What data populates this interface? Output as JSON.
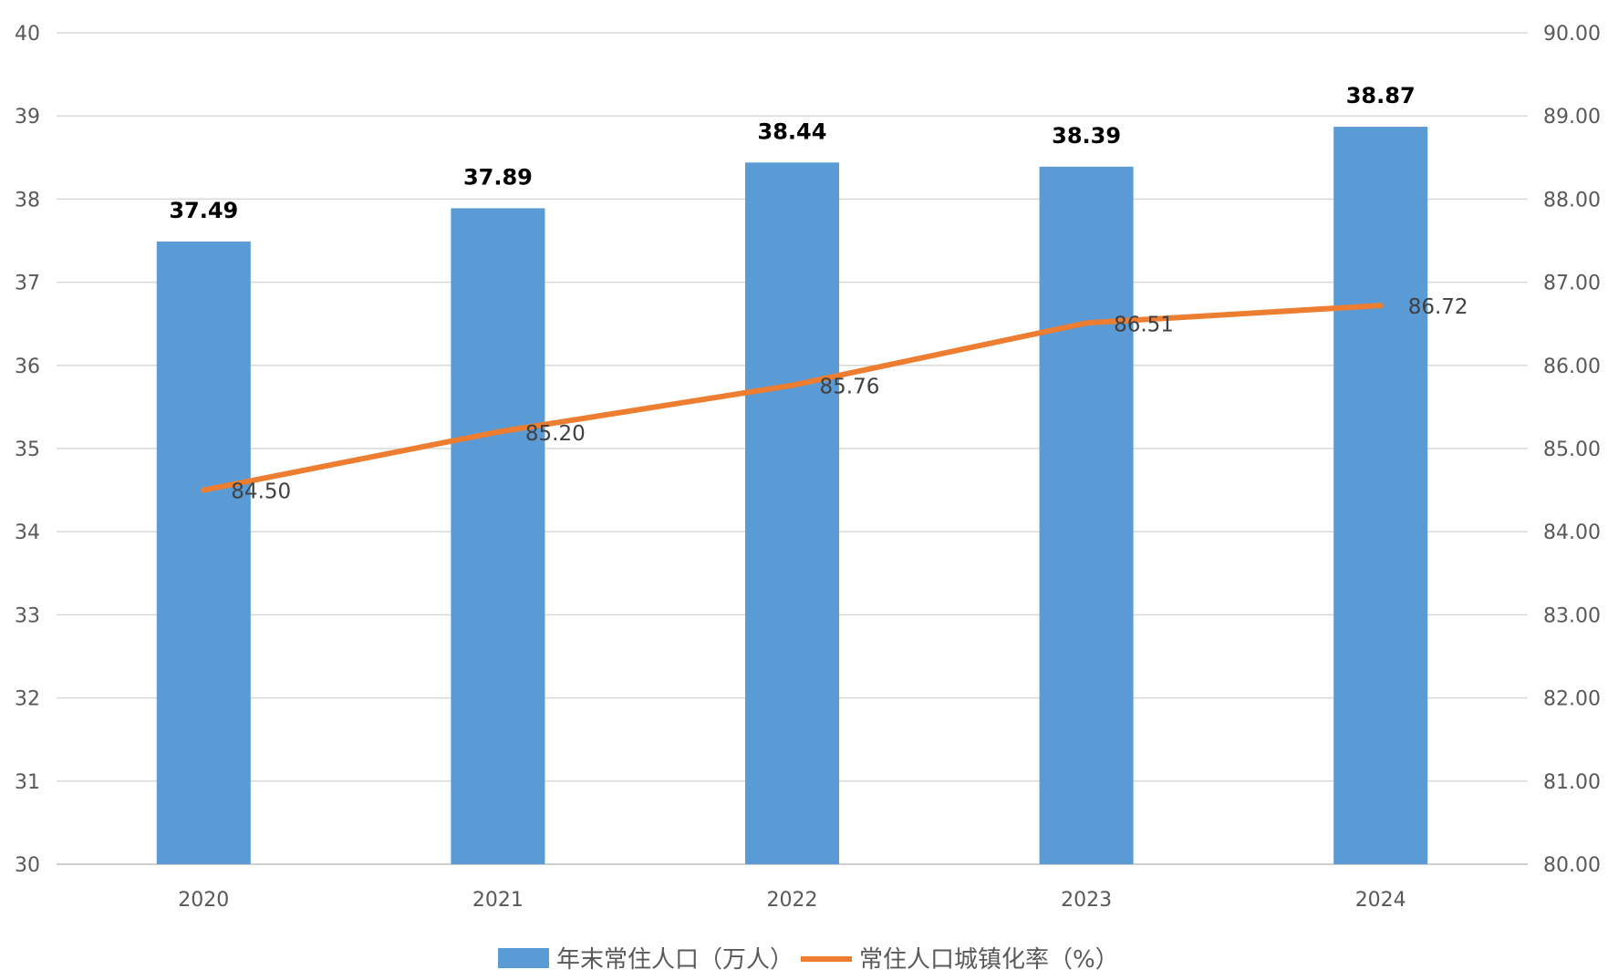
{
  "chart_data": {
    "type": "bar",
    "categories": [
      "2020",
      "2021",
      "2022",
      "2023",
      "2024"
    ],
    "series": [
      {
        "name": "年末常住人口（万人）",
        "kind": "bar",
        "axis": "left",
        "color": "#5B9BD5",
        "values": [
          37.49,
          37.89,
          38.44,
          38.39,
          38.87
        ],
        "labels": [
          "37.49",
          "37.89",
          "38.44",
          "38.39",
          "38.87"
        ]
      },
      {
        "name": "常住人口城镇化率（%）",
        "kind": "line",
        "axis": "right",
        "color": "#ED7D31",
        "values": [
          84.5,
          85.2,
          85.76,
          86.51,
          86.72
        ],
        "labels": [
          "84.50",
          "85.20",
          "85.76",
          "86.51",
          "86.72"
        ]
      }
    ],
    "left_axis": {
      "ylim": [
        30,
        40
      ],
      "ticks": [
        "30",
        "31",
        "32",
        "33",
        "34",
        "35",
        "36",
        "37",
        "38",
        "39",
        "40"
      ]
    },
    "right_axis": {
      "ylim": [
        80,
        90
      ],
      "ticks": [
        "80.00",
        "81.00",
        "82.00",
        "83.00",
        "84.00",
        "85.00",
        "86.00",
        "87.00",
        "88.00",
        "89.00",
        "90.00"
      ]
    },
    "grid": true,
    "legend_position": "bottom"
  }
}
